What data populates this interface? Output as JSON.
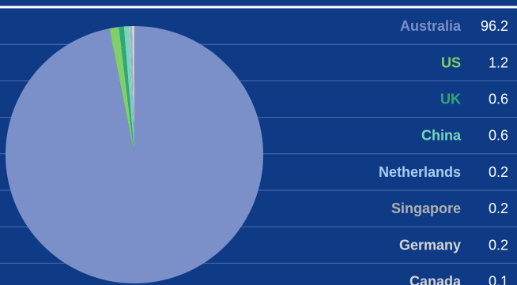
{
  "chart_data": {
    "type": "pie",
    "title": "",
    "series": [
      {
        "name": "Australia",
        "value": 96.2,
        "color": "#7b8fc9"
      },
      {
        "name": "US",
        "value": 1.2,
        "color": "#7fcf6b"
      },
      {
        "name": "UK",
        "value": 0.6,
        "color": "#2fa87a"
      },
      {
        "name": "China",
        "value": 0.6,
        "color": "#78d6b8"
      },
      {
        "name": "Netherlands",
        "value": 0.2,
        "color": "#a9cef0"
      },
      {
        "name": "Singapore",
        "value": 0.2,
        "color": "#b0b0b0"
      },
      {
        "name": "Germany",
        "value": 0.2,
        "color": "#d4d4d4"
      },
      {
        "name": "Canada",
        "value": 0.1,
        "color": "#d4d4d4"
      }
    ],
    "colors": {
      "background": "#0f3b86",
      "row_divider": "#4a6fb2",
      "value_text": "#ffffff"
    }
  }
}
